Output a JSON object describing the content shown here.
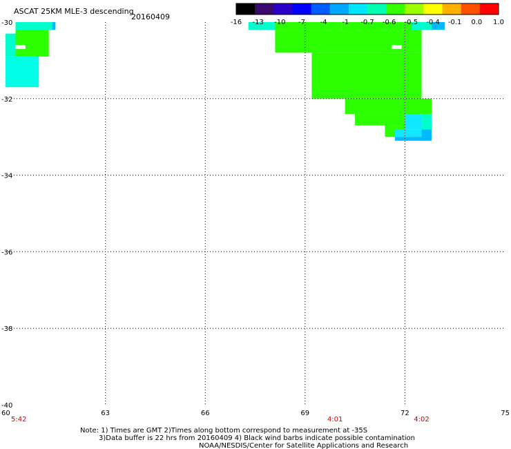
{
  "chart_data": {
    "type": "heatmap",
    "title": "ASCAT 25KM MLE-3 descending",
    "date": "20160409",
    "xlim": [
      60,
      75
    ],
    "ylim": [
      -40,
      -30
    ],
    "x_ticks": [
      "60",
      "63",
      "66",
      "69",
      "72",
      "75"
    ],
    "y_ticks": [
      "-30",
      "-32",
      "-34",
      "-36",
      "-38",
      "-40"
    ],
    "colorbar_labels": [
      "-16",
      "-13",
      "-10",
      "-7",
      "-4",
      "-1",
      "-0.7",
      "-0.6",
      "-0.5",
      "-0.4",
      "-0.1",
      "0.0",
      "1.0"
    ],
    "colorbar_colors": [
      "#000000",
      "#3b0a6e",
      "#2a00c8",
      "#0000ff",
      "#005cff",
      "#00a8ff",
      "#00e6ff",
      "#00ffb0",
      "#33ff00",
      "#9bff00",
      "#ffff00",
      "#ffb000",
      "#ff5000",
      "#ff0000"
    ],
    "cell_colors": {
      "green": "#2bff00",
      "cyan": "#00ffcc",
      "light_cyan": "#00ffe6",
      "blue": "#00bbff",
      "aqua": "#10e8ff"
    },
    "time_labels": [
      {
        "lon": 60.4,
        "text": "5:42"
      },
      {
        "lon": 69.9,
        "text": "4:01"
      },
      {
        "lon": 72.5,
        "text": "4:02"
      }
    ],
    "cells": [
      {
        "lon0": 60.3,
        "lon1": 61.4,
        "lat0": -30.0,
        "lat1": -30.2,
        "color": "cyan"
      },
      {
        "lon0": 61.4,
        "lon1": 61.5,
        "lat0": -30.0,
        "lat1": -30.2,
        "color": "blue"
      },
      {
        "lon0": 60.3,
        "lon1": 61.3,
        "lat0": -30.2,
        "lat1": -30.9,
        "color": "green"
      },
      {
        "lon0": 60.0,
        "lon1": 60.3,
        "lat0": -30.3,
        "lat1": -30.9,
        "color": "cyan"
      },
      {
        "lon0": 60.0,
        "lon1": 61.0,
        "lat0": -30.9,
        "lat1": -31.7,
        "color": "light_cyan"
      },
      {
        "lon0": 67.3,
        "lon1": 70.1,
        "lat0": -30.0,
        "lat1": -30.2,
        "color": "green"
      },
      {
        "lon0": 70.1,
        "lon1": 72.8,
        "lat0": -30.0,
        "lat1": -30.2,
        "color": "green"
      },
      {
        "lon0": 67.3,
        "lon1": 68.1,
        "lat0": -30.0,
        "lat1": -30.2,
        "color": "cyan"
      },
      {
        "lon0": 72.2,
        "lon1": 72.8,
        "lat0": -30.0,
        "lat1": -30.2,
        "color": "cyan"
      },
      {
        "lon0": 72.8,
        "lon1": 73.2,
        "lat0": -30.0,
        "lat1": -30.2,
        "color": "blue"
      },
      {
        "lon0": 68.1,
        "lon1": 72.5,
        "lat0": -30.2,
        "lat1": -30.8,
        "color": "green"
      },
      {
        "lon0": 69.2,
        "lon1": 72.5,
        "lat0": -30.8,
        "lat1": -32.0,
        "color": "green"
      },
      {
        "lon0": 70.2,
        "lon1": 72.8,
        "lat0": -32.0,
        "lat1": -32.4,
        "color": "green"
      },
      {
        "lon0": 70.5,
        "lon1": 72.0,
        "lat0": -32.4,
        "lat1": -32.7,
        "color": "green"
      },
      {
        "lon0": 71.4,
        "lon1": 72.0,
        "lat0": -32.7,
        "lat1": -33.0,
        "color": "green"
      },
      {
        "lon0": 72.0,
        "lon1": 72.5,
        "lat0": -32.4,
        "lat1": -32.8,
        "color": "aqua"
      },
      {
        "lon0": 72.5,
        "lon1": 72.8,
        "lat0": -32.4,
        "lat1": -32.8,
        "color": "cyan"
      },
      {
        "lon0": 71.7,
        "lon1": 72.5,
        "lat0": -32.8,
        "lat1": -33.0,
        "color": "aqua"
      },
      {
        "lon0": 72.5,
        "lon1": 72.8,
        "lat0": -32.8,
        "lat1": -33.1,
        "color": "blue"
      },
      {
        "lon0": 71.7,
        "lon1": 72.5,
        "lat0": -33.0,
        "lat1": -33.1,
        "color": "blue"
      }
    ],
    "holes": [
      {
        "lon0": 60.3,
        "lon1": 60.6,
        "lat0": -30.6,
        "lat1": -30.7
      },
      {
        "lon0": 71.6,
        "lon1": 71.9,
        "lat0": -30.6,
        "lat1": -30.7
      }
    ],
    "grid": true
  },
  "note": {
    "line1": "Note: 1) Times are GMT 2)Times along bottom correspond to measurement at -35S",
    "line2": "3)Data buffer is 22 hrs from 20160409 4) Black wind barbs indicate possible contamination",
    "line3": "NOAA/NESDIS/Center for Satellite Applications and Research"
  }
}
